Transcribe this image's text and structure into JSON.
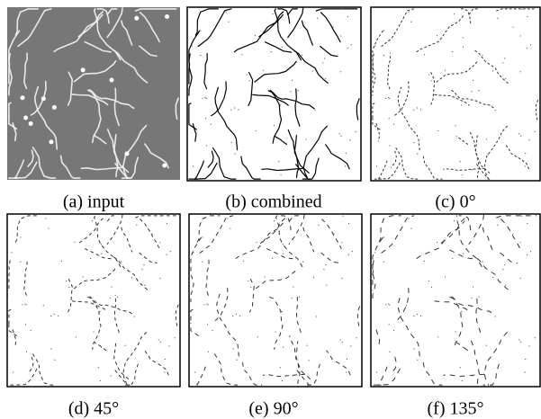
{
  "figure": {
    "panels": [
      {
        "caption": "(a) input"
      },
      {
        "caption": "(b) combined"
      },
      {
        "caption": "(c) 0°"
      },
      {
        "caption": "(d) 45°"
      },
      {
        "caption": "(e) 90°"
      },
      {
        "caption": "(f) 135°"
      }
    ]
  }
}
